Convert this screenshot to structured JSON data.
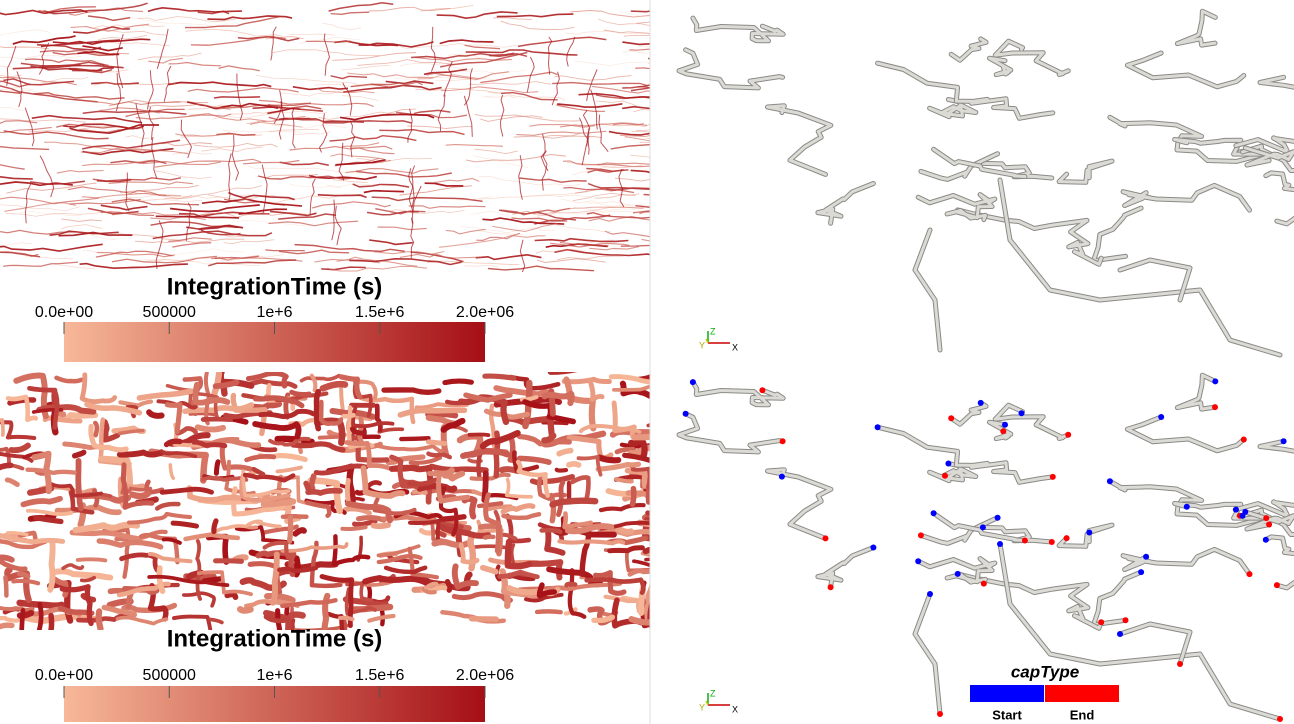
{
  "colorbars": [
    {
      "title": "IntegrationTime (s)",
      "range": [
        0,
        2000000
      ],
      "colors": [
        "#f7b898",
        "#a50f15"
      ],
      "ticks": [
        {
          "value": 0,
          "label": "0.0e+00"
        },
        {
          "value": 500000,
          "label": "500000"
        },
        {
          "value": 1000000,
          "label": "1e+6"
        },
        {
          "value": 1500000,
          "label": "1.5e+6"
        },
        {
          "value": 2000000,
          "label": "2.0e+06"
        }
      ]
    },
    {
      "title": "IntegrationTime (s)",
      "range": [
        0,
        2000000
      ],
      "colors": [
        "#f7b898",
        "#a50f15"
      ],
      "ticks": [
        {
          "value": 0,
          "label": "0.0e+00"
        },
        {
          "value": 500000,
          "label": "500000"
        },
        {
          "value": 1000000,
          "label": "1e+6"
        },
        {
          "value": 1500000,
          "label": "1.5e+6"
        },
        {
          "value": 2000000,
          "label": "2.0e+06"
        }
      ]
    }
  ],
  "orientation_axes": [
    {
      "z": "Z",
      "y": "Y",
      "x": "X"
    },
    {
      "z": "Z",
      "y": "Y",
      "x": "X"
    }
  ],
  "cap_legend": {
    "title": "capType",
    "entries": [
      {
        "label": "Start",
        "color": "#0000ff"
      },
      {
        "label": "End",
        "color": "#ff0000"
      }
    ]
  }
}
